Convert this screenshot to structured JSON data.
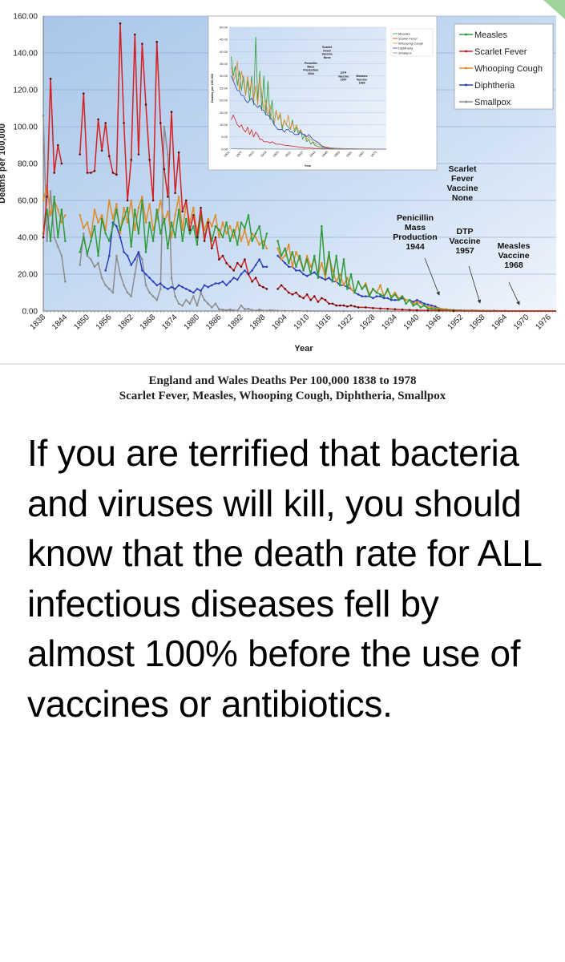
{
  "chart_data": {
    "type": "line",
    "title": "",
    "xlabel": "Year",
    "ylabel": "Deaths per 100,000",
    "xlim": [
      1838,
      1978
    ],
    "ylim": [
      0,
      160
    ],
    "y_ticks": [
      "0.00",
      "20.00",
      "40.00",
      "60.00",
      "80.00",
      "100.00",
      "120.00",
      "140.00",
      "160.00"
    ],
    "x_ticks": [
      "1838",
      "1844",
      "1850",
      "1856",
      "1862",
      "1868",
      "1874",
      "1880",
      "1886",
      "1892",
      "1898",
      "1904",
      "1910",
      "1916",
      "1922",
      "1928",
      "1934",
      "1940",
      "1946",
      "1952",
      "1958",
      "1964",
      "1970",
      "1976"
    ],
    "grid": true,
    "legend_position": "top-right",
    "series": [
      {
        "name": "Measles",
        "color": "#2e9a3a",
        "x": [
          1838,
          1839,
          1840,
          1841,
          1842,
          1843,
          1844,
          null,
          1848,
          1849,
          1850,
          1851,
          1852,
          1853,
          1854,
          1855,
          1856,
          1857,
          1858,
          1859,
          1860,
          1861,
          1862,
          1863,
          1864,
          1865,
          1866,
          1867,
          1868,
          1869,
          1870,
          1871,
          1872,
          1873,
          1874,
          1875,
          1876,
          1877,
          1878,
          1879,
          1880,
          1881,
          1882,
          1883,
          1884,
          1885,
          1886,
          1887,
          1888,
          1889,
          1890,
          1891,
          1892,
          1893,
          1894,
          1895,
          1896,
          1897,
          1898,
          1899,
          null,
          1902,
          1903,
          1904,
          1905,
          1906,
          1907,
          1908,
          1909,
          1910,
          1911,
          1912,
          1913,
          1914,
          1915,
          1916,
          1917,
          1918,
          1919,
          1920,
          1921,
          1922,
          1923,
          1924,
          1925,
          1926,
          1927,
          1928,
          1929,
          1930,
          1931,
          1932,
          1933,
          1934,
          1935,
          1936,
          1937,
          1938,
          1939,
          1940,
          1941,
          1942,
          1943,
          1944,
          1945,
          1946,
          1948,
          1950,
          1952,
          1955,
          1958,
          1961,
          1964,
          1968,
          1972,
          1976,
          1978
        ],
        "values": [
          42,
          55,
          38,
          62,
          40,
          55,
          38,
          null,
          32,
          40,
          31,
          38,
          46,
          30,
          50,
          42,
          38,
          46,
          55,
          44,
          50,
          56,
          35,
          55,
          42,
          60,
          32,
          48,
          38,
          55,
          42,
          50,
          34,
          48,
          40,
          55,
          38,
          50,
          42,
          46,
          36,
          52,
          40,
          48,
          38,
          46,
          44,
          40,
          48,
          38,
          44,
          36,
          48,
          45,
          52,
          38,
          42,
          46,
          34,
          42,
          null,
          38,
          30,
          34,
          26,
          32,
          24,
          30,
          22,
          28,
          20,
          30,
          18,
          46,
          20,
          32,
          16,
          30,
          14,
          28,
          12,
          20,
          10,
          16,
          12,
          14,
          8,
          12,
          10,
          9,
          8,
          12,
          7,
          9,
          6,
          8,
          4,
          6,
          3,
          4,
          2,
          3,
          1.5,
          1.2,
          1,
          0.8,
          0.6,
          0.5,
          0.4,
          0.3,
          0.2,
          0.2,
          0.1,
          0.05,
          0.02,
          0.01,
          0
        ]
      },
      {
        "name": "Scarlet Fever",
        "color": "#d42020",
        "x": [
          1838,
          1839,
          1840,
          1841,
          1842,
          1843,
          1844,
          null,
          1848,
          1849,
          1850,
          1851,
          1852,
          1853,
          1854,
          1855,
          1856,
          1857,
          1858,
          1859,
          1860,
          1861,
          1862,
          1863,
          1864,
          1865,
          1866,
          1867,
          1868,
          1869,
          1870,
          1871,
          1872,
          1873,
          1874,
          1875,
          1876,
          1877,
          1878,
          1879,
          1880,
          1881,
          1882,
          1883,
          1884,
          1885,
          1886,
          1887,
          1888,
          1889,
          1890,
          1891,
          1892,
          1893,
          1894,
          1895,
          1896,
          1897,
          1898,
          1899,
          null,
          1902,
          1903,
          1904,
          1905,
          1906,
          1907,
          1908,
          1909,
          1910,
          1911,
          1912,
          1913,
          1914,
          1915,
          1916,
          1917,
          1918,
          1919,
          1920,
          1921,
          1922,
          1923,
          1924,
          1926,
          1928,
          1930,
          1932,
          1934,
          1936,
          1938,
          1940,
          1943,
          1946,
          1950,
          1955,
          1960,
          1965,
          1970,
          1978
        ],
        "values": [
          40,
          62,
          126,
          75,
          90,
          80,
          null,
          null,
          85,
          118,
          75,
          75,
          76,
          104,
          87,
          102,
          84,
          75,
          74,
          156,
          102,
          60,
          82,
          150,
          85,
          145,
          112,
          82,
          60,
          146,
          102,
          77,
          62,
          108,
          64,
          86,
          54,
          60,
          44,
          52,
          40,
          56,
          38,
          48,
          34,
          40,
          28,
          30,
          26,
          24,
          22,
          26,
          24,
          28,
          20,
          16,
          18,
          14,
          13,
          12,
          null,
          12,
          14,
          12,
          10,
          9,
          10,
          8,
          7,
          9,
          6,
          8,
          5,
          7,
          6,
          4,
          4,
          3,
          3,
          3,
          2.5,
          3,
          2.5,
          2,
          2,
          1.6,
          1.4,
          1.2,
          1,
          0.8,
          0.6,
          0.5,
          0.3,
          0.2,
          0.1,
          0.05,
          0.02,
          0.01,
          0,
          0
        ]
      },
      {
        "name": "Whooping Cough",
        "color": "#e08a2a",
        "x": [
          1838,
          1839,
          1840,
          1841,
          1842,
          1843,
          1844,
          null,
          1848,
          1849,
          1850,
          1851,
          1852,
          1853,
          1854,
          1855,
          1856,
          1857,
          1858,
          1859,
          1860,
          1861,
          1862,
          1863,
          1864,
          1865,
          1866,
          1867,
          1868,
          1869,
          1870,
          1871,
          1872,
          1873,
          1874,
          1875,
          1876,
          1877,
          1878,
          1879,
          1880,
          1881,
          1882,
          1883,
          1884,
          1885,
          1886,
          1887,
          1888,
          1889,
          1890,
          1891,
          1892,
          1893,
          1894,
          1895,
          1896,
          1897,
          1898,
          1899,
          null,
          1902,
          1903,
          1904,
          1905,
          1906,
          1907,
          1908,
          1909,
          1910,
          1911,
          1912,
          1913,
          1914,
          1915,
          1916,
          1917,
          1918,
          1919,
          1920,
          1921,
          1922,
          1923,
          1924,
          1925,
          1926,
          1927,
          1928,
          1929,
          1930,
          1931,
          1932,
          1933,
          1934,
          1935,
          1936,
          1937,
          1938,
          1939,
          1940,
          1942,
          1944,
          1946,
          1948,
          1950,
          1953,
          1956,
          1960,
          1965,
          1970,
          1978
        ],
        "values": [
          60,
          68,
          52,
          60,
          55,
          48,
          52,
          null,
          52,
          45,
          48,
          40,
          55,
          48,
          52,
          44,
          60,
          50,
          58,
          42,
          56,
          48,
          60,
          44,
          56,
          62,
          48,
          58,
          44,
          50,
          60,
          48,
          54,
          40,
          52,
          62,
          44,
          58,
          48,
          56,
          42,
          54,
          44,
          50,
          46,
          52,
          40,
          48,
          42,
          46,
          40,
          48,
          38,
          44,
          36,
          42,
          40,
          36,
          38,
          34,
          null,
          34,
          28,
          30,
          36,
          24,
          32,
          28,
          22,
          30,
          24,
          28,
          20,
          26,
          18,
          30,
          22,
          16,
          20,
          14,
          18,
          12,
          10,
          16,
          12,
          15,
          9,
          12,
          10,
          14,
          8,
          11,
          8,
          10,
          7,
          8,
          6,
          6,
          4,
          5,
          3,
          2,
          1.5,
          1,
          0.6,
          0.3,
          0.2,
          0.1,
          0.05,
          0.02,
          0
        ]
      },
      {
        "name": "Diphtheria",
        "color": "#2a3fbf",
        "x": [
          1855,
          1856,
          1857,
          1858,
          1859,
          1860,
          1861,
          1862,
          1863,
          1864,
          1865,
          1866,
          1867,
          1868,
          1869,
          1870,
          1871,
          1872,
          1873,
          1874,
          1875,
          1876,
          1877,
          1878,
          1879,
          1880,
          1881,
          1882,
          1883,
          1884,
          1885,
          1886,
          1887,
          1888,
          1889,
          1890,
          1891,
          1892,
          1893,
          1894,
          1895,
          1896,
          1897,
          1898,
          1899,
          null,
          1902,
          1903,
          1904,
          1905,
          1906,
          1907,
          1908,
          1909,
          1910,
          1911,
          1912,
          1913,
          1914,
          1915,
          1916,
          1917,
          1918,
          1919,
          1920,
          1921,
          1922,
          1923,
          1924,
          1925,
          1926,
          1927,
          1928,
          1929,
          1930,
          1931,
          1932,
          1933,
          1934,
          1935,
          1936,
          1937,
          1938,
          1939,
          1940,
          1941,
          1942,
          1943,
          1944,
          1945,
          1946,
          1947,
          1948,
          1950,
          1953,
          1956,
          1960,
          1965,
          1970,
          1978
        ],
        "values": [
          22,
          30,
          48,
          46,
          40,
          32,
          30,
          25,
          28,
          32,
          22,
          20,
          18,
          16,
          14,
          15,
          13,
          12,
          13,
          12,
          14,
          13,
          12,
          11,
          10,
          12,
          11,
          14,
          13,
          14,
          15,
          15,
          16,
          14,
          16,
          18,
          17,
          20,
          22,
          20,
          22,
          25,
          28,
          24,
          24,
          null,
          30,
          28,
          26,
          24,
          24,
          22,
          22,
          20,
          19,
          20,
          21,
          19,
          18,
          17,
          18,
          16,
          16,
          14,
          14,
          13,
          12,
          10,
          9,
          8,
          8,
          8,
          7,
          8,
          8,
          7,
          7,
          6,
          6,
          6,
          7,
          6,
          6,
          5,
          6,
          5,
          4,
          3.5,
          3,
          2.5,
          1.5,
          1,
          0.6,
          0.3,
          0.1,
          0.05,
          0.02,
          0,
          0,
          0
        ]
      },
      {
        "name": "Smallpox",
        "color": "#8c8c8c",
        "x": [
          1838,
          1839,
          1840,
          1841,
          1842,
          1843,
          1844,
          null,
          1848,
          1849,
          1850,
          1851,
          1852,
          1853,
          1854,
          1855,
          1856,
          1857,
          1858,
          1859,
          1860,
          1861,
          1862,
          1863,
          1864,
          1865,
          1866,
          1867,
          1868,
          1869,
          1870,
          1871,
          1872,
          1873,
          1874,
          1875,
          1876,
          1877,
          1878,
          1879,
          1880,
          1881,
          1882,
          1883,
          1884,
          1885,
          1886,
          1887,
          1888,
          1889,
          1890,
          1891,
          1892,
          1893,
          1894,
          1895,
          1896,
          1897,
          1898,
          1899,
          1900,
          1902,
          1904,
          1906,
          1910,
          1920,
          1930,
          1940,
          1950,
          1960,
          1978
        ],
        "values": [
          106,
          38,
          65,
          40,
          35,
          30,
          16,
          null,
          25,
          42,
          30,
          28,
          24,
          26,
          18,
          14,
          12,
          10,
          30,
          20,
          14,
          10,
          8,
          20,
          32,
          28,
          14,
          10,
          8,
          6,
          12,
          100,
          85,
          18,
          8,
          4,
          3,
          6,
          4,
          8,
          3,
          10,
          6,
          4,
          2,
          4,
          1,
          0.8,
          0.5,
          0.8,
          0.4,
          0.2,
          3,
          1,
          1.2,
          0.5,
          0.2,
          0.8,
          0.3,
          0.2,
          0.5,
          0.2,
          0.1,
          0.1,
          0.05,
          0.02,
          0.01,
          0,
          0,
          0,
          0
        ]
      }
    ],
    "annotations": [
      {
        "lines": [
          "Scarlet",
          "Fever",
          "Vaccine",
          "None"
        ]
      },
      {
        "lines": [
          "Penicillin",
          "Mass",
          "Production",
          "1944"
        ]
      },
      {
        "lines": [
          "DTP",
          "Vaccine",
          "1957"
        ]
      },
      {
        "lines": [
          "Measles",
          "Vaccine",
          "1968"
        ]
      }
    ],
    "inset": {
      "ylabel": "Deaths per 100,000",
      "xlabel": "Year",
      "y_ticks": [
        "0.00",
        "5.00",
        "10.00",
        "15.00",
        "20.00",
        "25.00",
        "30.00",
        "35.00",
        "40.00",
        "45.00",
        "50.00"
      ],
      "x_ticks": [
        "1901",
        "1907",
        "1913",
        "1919",
        "1925",
        "1931",
        "1937",
        "1943",
        "1949",
        "1955",
        "1961",
        "1967",
        "1973"
      ],
      "ylim": [
        0,
        50
      ],
      "xlim": [
        1901,
        1978
      ],
      "legend": [
        "Measles",
        "Scarlet Fever",
        "Whooping Cough",
        "Diphtheria",
        "Smallpox"
      ],
      "annotations": [
        {
          "lines": [
            "Penicillin",
            "Mass",
            "Production",
            "1944"
          ]
        },
        {
          "lines": [
            "Scarlet",
            "Fever",
            "Vaccine",
            "None"
          ]
        },
        {
          "lines": [
            "DTP",
            "Vaccine",
            "1957"
          ]
        },
        {
          "lines": [
            "Measles",
            "Vaccine",
            "1968"
          ]
        }
      ]
    }
  },
  "caption": {
    "line1": "England and Wales Deaths Per 100,000 1838 to 1978",
    "line2": "Scarlet Fever, Measles, Whooping Cough, Diphtheria, Smallpox"
  },
  "message": "If you are terrified that bacteria and viruses will kill, you should know that the death rate for ALL infectious diseases fell by almost 100% before the use of vaccines or antibiotics."
}
